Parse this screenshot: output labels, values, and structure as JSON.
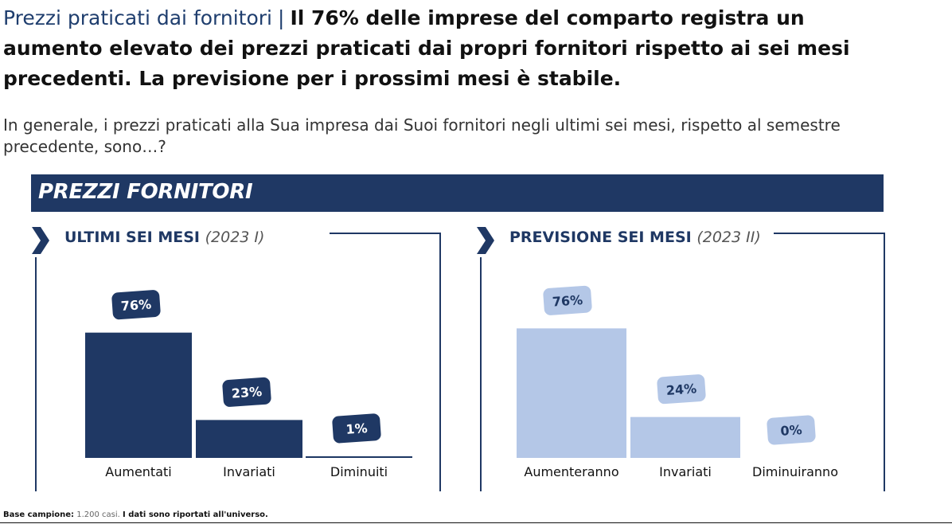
{
  "header": {
    "topic": "Prezzi praticati dai fornitori",
    "separator": "|",
    "headline_line1": "Il 76% delle imprese del comparto registra un",
    "headline_line2": "aumento elevato dei prezzi praticati dai propri fornitori rispetto ai sei mesi",
    "headline_line3": "precedenti.  La previsione per i prossimi mesi è stabile."
  },
  "question": {
    "line1": "In generale, i prezzi praticati alla Sua impresa dai Suoi fornitori negli ultimi sei mesi, rispetto al semestre",
    "line2": "precedente, sono…?"
  },
  "banner": {
    "title": "PREZZI FORNITORI"
  },
  "panels": [
    {
      "title": "ULTIMI SEI MESI",
      "period": "(2023 I)"
    },
    {
      "title": "PREVISIONE SEI MESI",
      "period": "(2023 II)"
    }
  ],
  "colors": {
    "dark_navy": "#1f3864",
    "light_blue": "#b4c7e7",
    "light_text": "#1f3864"
  },
  "chart_data": [
    {
      "type": "bar",
      "title": "ULTIMI SEI MESI (2023 I)",
      "categories": [
        "Aumentati",
        "Invariati",
        "Diminuiti"
      ],
      "values": [
        76,
        23,
        1
      ],
      "labels": [
        "76%",
        "23%",
        "1%"
      ],
      "unit": "%",
      "ylim": [
        0,
        100
      ],
      "grid": false,
      "color": "#1f3864"
    },
    {
      "type": "bar",
      "title": "PREVISIONE SEI MESI (2023 II)",
      "categories": [
        "Aumenteranno",
        "Invariati",
        "Diminuiranno"
      ],
      "values": [
        76,
        24,
        0
      ],
      "labels": [
        "76%",
        "24%",
        "0%"
      ],
      "unit": "%",
      "ylim": [
        0,
        100
      ],
      "grid": false,
      "color": "#b4c7e7"
    }
  ],
  "footnote": {
    "label": "Base campione:",
    "text": " 1.200 casi. ",
    "note": "I dati sono riportati all'universo."
  }
}
